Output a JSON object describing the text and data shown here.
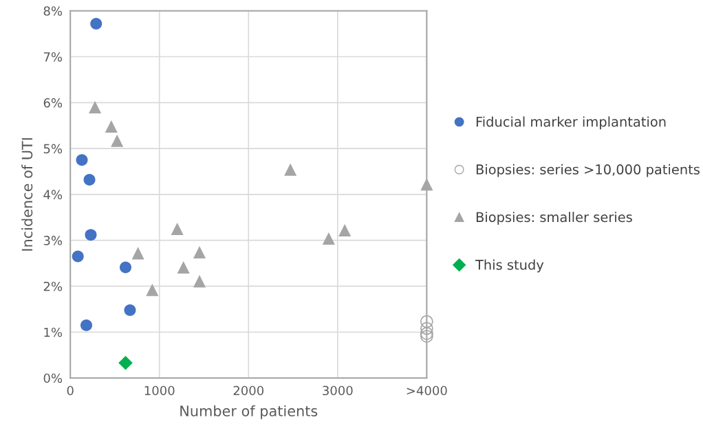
{
  "chart_data": {
    "type": "scatter",
    "xlabel": "Number of patients",
    "ylabel": "Incidence of UTI",
    "xlim": [
      0,
      4000
    ],
    "xticks": [
      0,
      1000,
      2000,
      3000,
      {
        "value": 4000,
        "label": ">4000"
      }
    ],
    "ylim": [
      0,
      8
    ],
    "yticks": [
      {
        "value": 0,
        "label": "0%"
      },
      {
        "value": 1,
        "label": "1%"
      },
      {
        "value": 2,
        "label": "2%"
      },
      {
        "value": 3,
        "label": "3%"
      },
      {
        "value": 4,
        "label": "4%"
      },
      {
        "value": 5,
        "label": "5%"
      },
      {
        "value": 6,
        "label": "6%"
      },
      {
        "value": 7,
        "label": "7%"
      },
      {
        "value": 8,
        "label": "8%"
      }
    ],
    "grid": true,
    "legend": "right",
    "series": [
      {
        "name": "Fiducial marker implantation",
        "color": "#4472c4",
        "marker": "circle",
        "x": [
          290,
          130,
          215,
          230,
          85,
          620,
          670,
          180
        ],
        "values": [
          7.72,
          4.75,
          4.32,
          3.12,
          2.65,
          2.41,
          1.48,
          1.15
        ]
      },
      {
        "name": "Biopsies: series >10,000 patients",
        "color": "#a5a5a5",
        "marker": "circle_open",
        "x": [
          4000,
          4000,
          4000,
          4000
        ],
        "values": [
          1.23,
          1.08,
          0.97,
          0.91
        ]
      },
      {
        "name": "Biopsies: smaller series",
        "color": "#a5a5a5",
        "marker": "triangle",
        "x": [
          277,
          460,
          525,
          760,
          920,
          1200,
          1270,
          1450,
          1450,
          2470,
          2900,
          3080,
          4000
        ],
        "values": [
          5.9,
          5.48,
          5.17,
          2.72,
          1.92,
          3.25,
          2.41,
          2.74,
          2.11,
          4.54,
          3.04,
          3.22,
          4.22
        ]
      },
      {
        "name": "This study",
        "color": "#00b050",
        "marker": "diamond",
        "x": [
          620
        ],
        "values": [
          0.33
        ]
      }
    ]
  }
}
